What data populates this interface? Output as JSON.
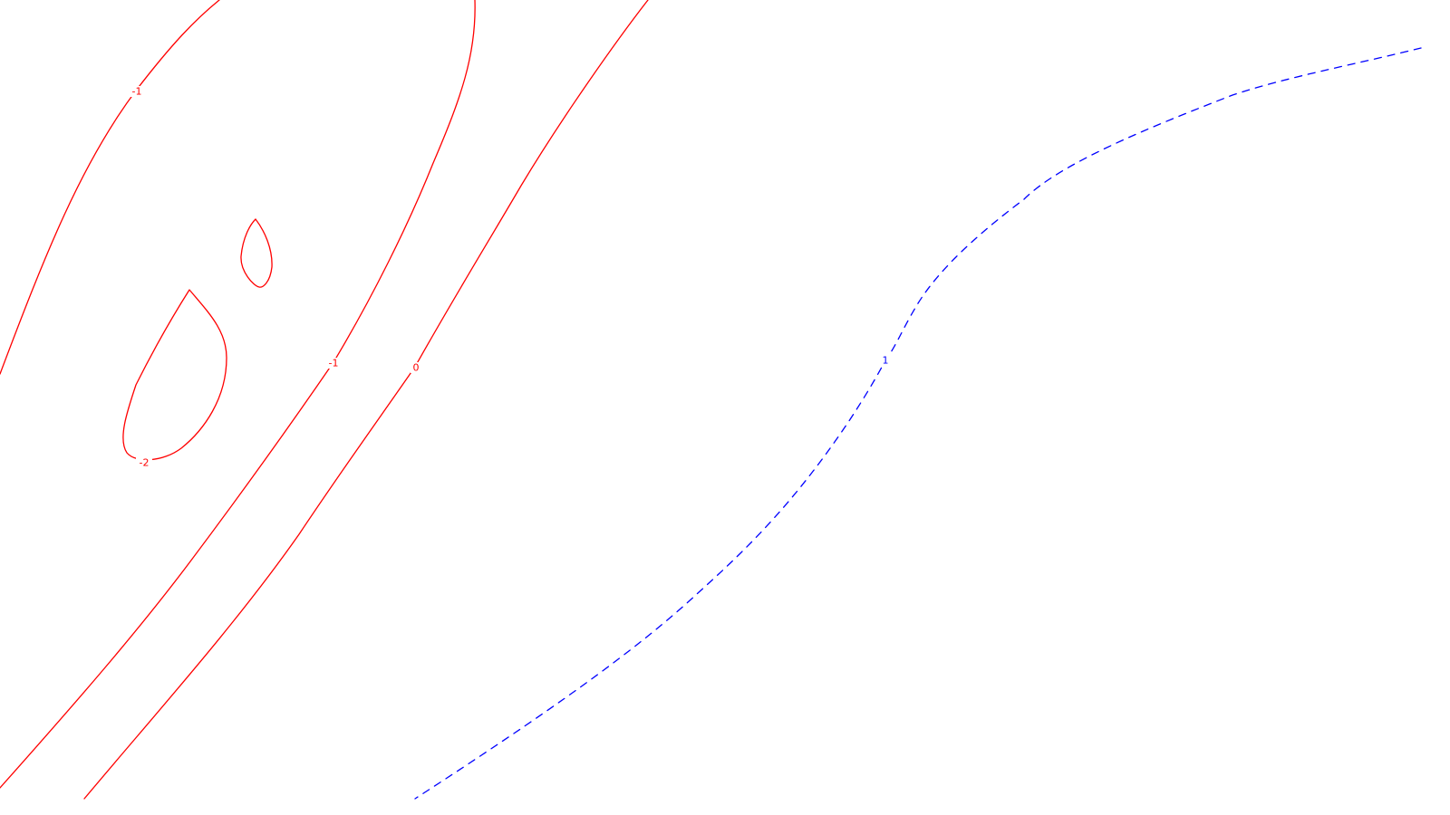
{
  "chart_data": {
    "type": "contour",
    "title": "",
    "xlabel": "",
    "ylabel": "",
    "grid": false,
    "legend": false,
    "colors": {
      "negative_and_zero": "#ff0000",
      "positive": "#0000ff",
      "background": "#ffffff"
    },
    "levels": [
      {
        "level": -1,
        "label": "-1",
        "style": "solid",
        "color": "#ff0000",
        "segments": [
          {
            "labels": [
              "-1"
            ]
          },
          {
            "labels": [
              "-1"
            ]
          }
        ]
      },
      {
        "level": -2,
        "label": "-2",
        "style": "solid",
        "color": "#ff0000",
        "segments": [
          {
            "labels": [
              "-2"
            ]
          },
          {
            "labels": []
          }
        ]
      },
      {
        "level": 0,
        "label": "0",
        "style": "solid",
        "color": "#ff0000",
        "segments": [
          {
            "labels": [
              "0"
            ]
          }
        ]
      },
      {
        "level": 1,
        "label": "1",
        "style": "dashed",
        "color": "#0000ff",
        "segments": [
          {
            "labels": [
              "1"
            ]
          }
        ]
      }
    ]
  }
}
